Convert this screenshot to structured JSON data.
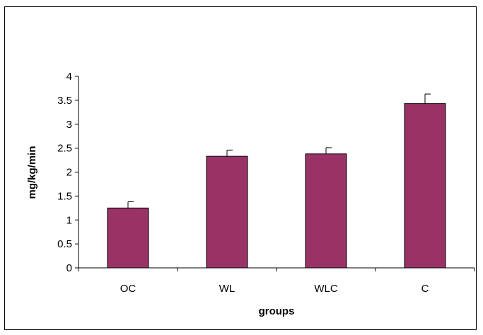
{
  "chart_data": {
    "type": "bar",
    "categories": [
      "OC",
      "WL",
      "WLC",
      "C"
    ],
    "values": [
      1.25,
      2.33,
      2.38,
      3.43
    ],
    "errors": [
      0.13,
      0.13,
      0.13,
      0.2
    ],
    "xlabel": "groups",
    "ylabel": "mg/kg/min",
    "ylim": [
      0,
      4
    ],
    "yticks": [
      "0",
      "0.5",
      "1",
      "1.5",
      "2",
      "2.5",
      "3",
      "3.5",
      "4"
    ],
    "grid": false,
    "legend": "none",
    "colors": {
      "bar": "#993366",
      "axis": "#000000",
      "background": "#ffffff"
    }
  }
}
